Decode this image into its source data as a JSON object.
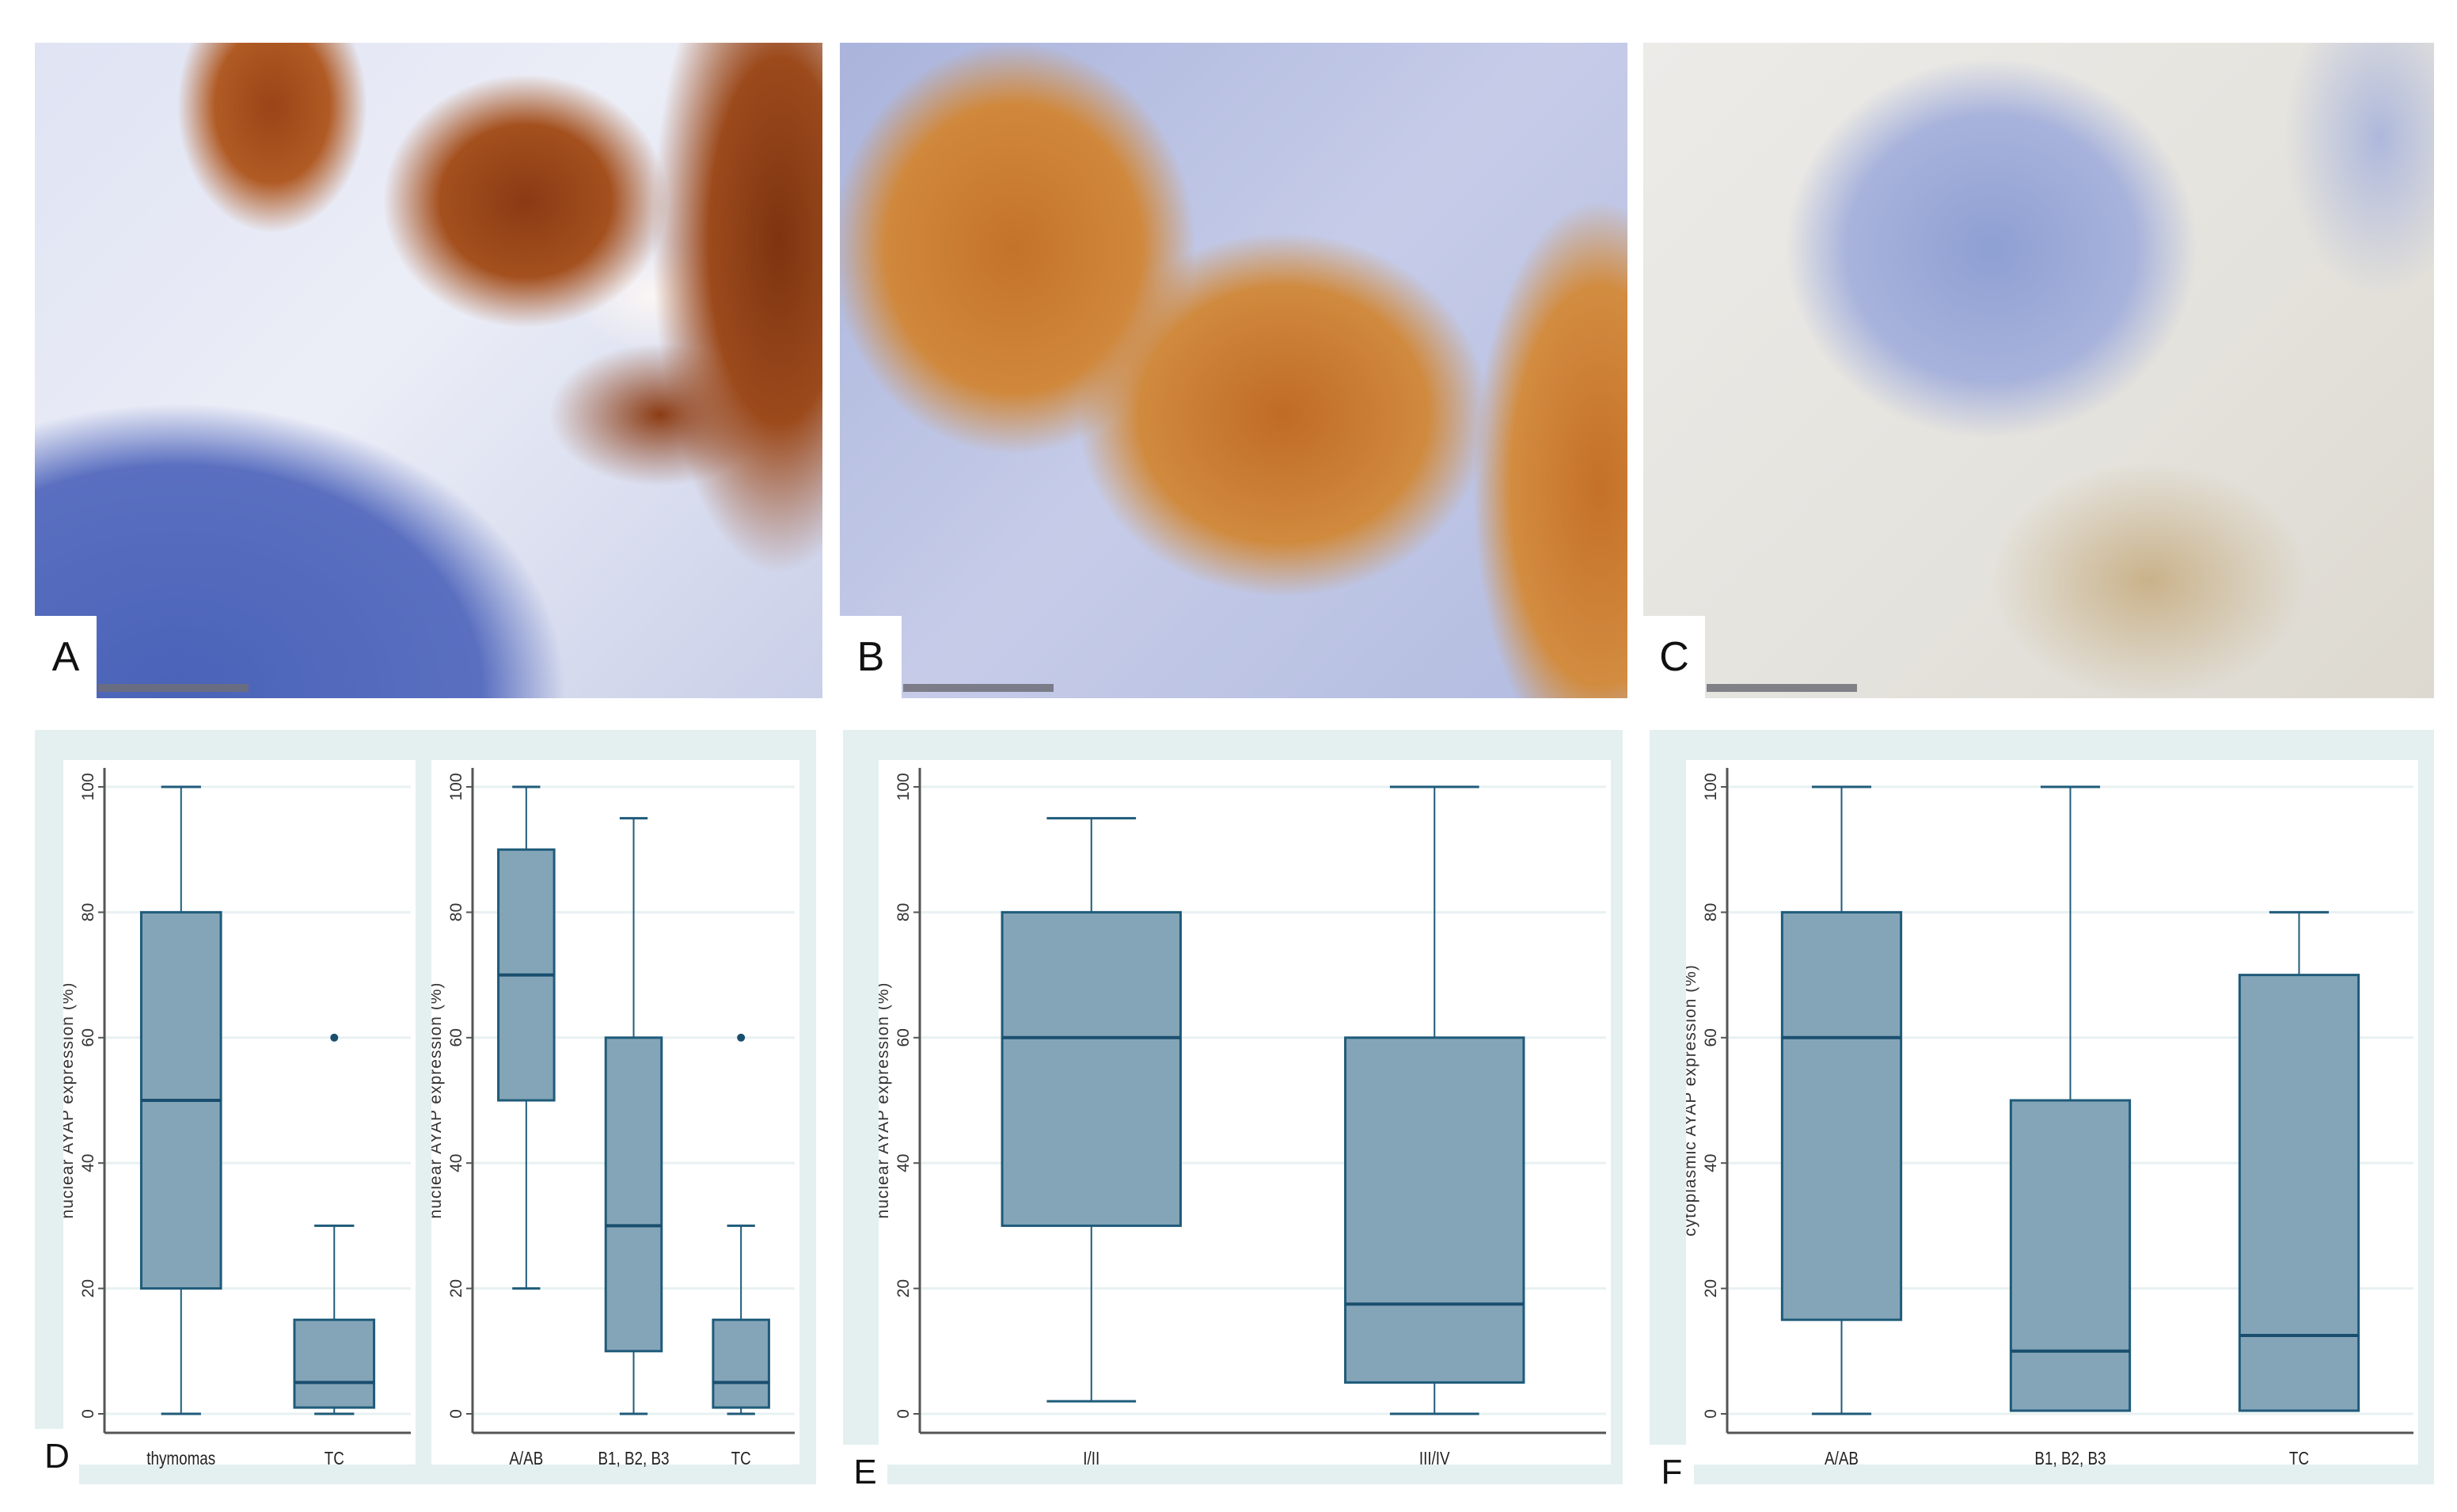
{
  "panels": {
    "a": {
      "letter": "A"
    },
    "b": {
      "letter": "B"
    },
    "c": {
      "letter": "C"
    },
    "d": {
      "letter": "D"
    },
    "e": {
      "letter": "E"
    },
    "f": {
      "letter": "F"
    }
  },
  "colors": {
    "box_fill": "#84a5b8",
    "box_stroke": "#1f5b7a",
    "panel_bg": "#e4eff0"
  },
  "chart_data": [
    {
      "type": "box",
      "panel": "D",
      "ylabel": "nuclear AYAP expression (%)",
      "ylim": [
        0,
        100
      ],
      "yticks": [
        0,
        20,
        40,
        60,
        80,
        100
      ],
      "grid": true,
      "categories": [
        "thymomas",
        "TC"
      ],
      "boxes": [
        {
          "min": 0,
          "q1": 20,
          "median": 50,
          "q3": 80,
          "max": 100,
          "outliers": []
        },
        {
          "min": 0,
          "q1": 1,
          "median": 5,
          "q3": 15,
          "max": 30,
          "outliers": [
            60
          ]
        }
      ]
    },
    {
      "type": "box",
      "panel": "D",
      "ylabel": "nuclear AYAP expression (%)",
      "ylim": [
        0,
        100
      ],
      "yticks": [
        0,
        20,
        40,
        60,
        80,
        100
      ],
      "grid": true,
      "categories": [
        "A/AB",
        "B1, B2, B3",
        "TC"
      ],
      "boxes": [
        {
          "min": 20,
          "q1": 50,
          "median": 70,
          "q3": 90,
          "max": 100,
          "outliers": []
        },
        {
          "min": 0,
          "q1": 10,
          "median": 30,
          "q3": 60,
          "max": 95,
          "outliers": []
        },
        {
          "min": 0,
          "q1": 1,
          "median": 5,
          "q3": 15,
          "max": 30,
          "outliers": [
            60
          ]
        }
      ]
    },
    {
      "type": "box",
      "panel": "E",
      "ylabel": "nuclear AYAP expression (%)",
      "ylim": [
        0,
        100
      ],
      "yticks": [
        0,
        20,
        40,
        60,
        80,
        100
      ],
      "grid": true,
      "categories": [
        "I/II",
        "III/IV"
      ],
      "boxes": [
        {
          "min": 2,
          "q1": 30,
          "median": 60,
          "q3": 80,
          "max": 95,
          "outliers": []
        },
        {
          "min": 0,
          "q1": 5,
          "median": 17.5,
          "q3": 60,
          "max": 100,
          "outliers": []
        }
      ]
    },
    {
      "type": "box",
      "panel": "F",
      "ylabel": "cytoplasmic AYAP expression (%)",
      "ylim": [
        0,
        100
      ],
      "yticks": [
        0,
        20,
        40,
        60,
        80,
        100
      ],
      "grid": true,
      "categories": [
        "A/AB",
        "B1, B2, B3",
        "TC"
      ],
      "boxes": [
        {
          "min": 0,
          "q1": 15,
          "median": 60,
          "q3": 80,
          "max": 100,
          "outliers": []
        },
        {
          "min": 0.5,
          "q1": 0.5,
          "median": 10,
          "q3": 50,
          "max": 100,
          "outliers": []
        },
        {
          "min": 0.5,
          "q1": 0.5,
          "median": 12.5,
          "q3": 70,
          "max": 80,
          "outliers": []
        }
      ]
    }
  ]
}
